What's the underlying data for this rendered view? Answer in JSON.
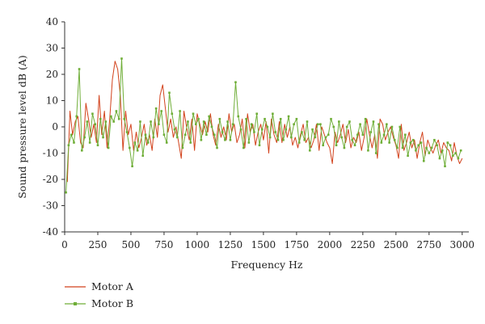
{
  "chart_data": {
    "type": "line",
    "title": "",
    "xlabel": "Frequency Hz",
    "ylabel": "Sound pressure level dB (A)",
    "xlim": [
      0,
      3050
    ],
    "ylim": [
      -40,
      40
    ],
    "xticks": [
      0,
      250,
      500,
      750,
      1000,
      1250,
      1500,
      1750,
      2000,
      2250,
      2500,
      2750,
      3000
    ],
    "yticks": [
      -40,
      -30,
      -20,
      -10,
      0,
      10,
      20,
      30,
      40
    ],
    "grid": false,
    "legend_position": "bottom-left",
    "series": [
      {
        "name": "Motor A",
        "color": "#d2421c",
        "marker": "none",
        "x": [
          20,
          40,
          60,
          80,
          100,
          120,
          140,
          160,
          180,
          200,
          220,
          240,
          260,
          280,
          300,
          320,
          340,
          360,
          380,
          400,
          420,
          440,
          460,
          480,
          500,
          520,
          540,
          560,
          580,
          600,
          620,
          640,
          660,
          680,
          700,
          720,
          740,
          760,
          780,
          800,
          820,
          840,
          860,
          880,
          900,
          920,
          940,
          960,
          980,
          1000,
          1020,
          1040,
          1060,
          1080,
          1100,
          1120,
          1140,
          1160,
          1180,
          1200,
          1220,
          1240,
          1260,
          1280,
          1300,
          1320,
          1340,
          1360,
          1380,
          1400,
          1420,
          1440,
          1460,
          1480,
          1500,
          1520,
          1540,
          1560,
          1580,
          1600,
          1620,
          1640,
          1660,
          1680,
          1700,
          1720,
          1740,
          1760,
          1780,
          1800,
          1820,
          1840,
          1860,
          1880,
          1900,
          1920,
          1940,
          1960,
          1980,
          2000,
          2020,
          2040,
          2060,
          2080,
          2100,
          2120,
          2140,
          2160,
          2180,
          2200,
          2220,
          2240,
          2260,
          2280,
          2300,
          2320,
          2340,
          2360,
          2380,
          2400,
          2420,
          2440,
          2460,
          2480,
          2500,
          2520,
          2540,
          2560,
          2580,
          2600,
          2620,
          2640,
          2660,
          2680,
          2700,
          2720,
          2740,
          2760,
          2780,
          2800,
          2820,
          2840,
          2860,
          2880,
          2900,
          2920,
          2940,
          2960,
          2980,
          3000
        ],
        "y": [
          -21,
          6,
          -3,
          2,
          4,
          -6,
          -8,
          9,
          3,
          -4,
          1,
          -6,
          12,
          -3,
          6,
          -8,
          3,
          18,
          25,
          22,
          12,
          -9,
          6,
          -3,
          1,
          -9,
          -2,
          -8,
          -4,
          1,
          -7,
          -3,
          -9,
          3,
          -4,
          12,
          16,
          7,
          -2,
          3,
          -4,
          0,
          -6,
          -12,
          6,
          0,
          -5,
          3,
          -9,
          5,
          1,
          -3,
          2,
          -2,
          5,
          -3,
          -7,
          1,
          -4,
          0,
          -5,
          5,
          -2,
          1,
          -6,
          -3,
          3,
          -8,
          5,
          -2,
          1,
          -7,
          -2,
          1,
          -5,
          2,
          -10,
          3,
          -3,
          -6,
          2,
          -6,
          1,
          -4,
          0,
          -7,
          -4,
          -8,
          -3,
          1,
          -6,
          -4,
          -8,
          -5,
          1,
          -9,
          0,
          -3,
          -6,
          -8,
          -14,
          -2,
          -6,
          -3,
          1,
          -6,
          -1,
          -8,
          -4,
          -6,
          -2,
          -9,
          -4,
          3,
          -3,
          -8,
          -3,
          -12,
          3,
          1,
          -5,
          -2,
          0,
          -4,
          -7,
          -12,
          1,
          -9,
          -6,
          -2,
          -8,
          -5,
          -12,
          -6,
          -2,
          -11,
          -5,
          -8,
          -10,
          -7,
          -5,
          -10,
          -6,
          -8,
          -9,
          -13,
          -6,
          -11,
          -14,
          -12
        ],
        "color_key": "Motor A"
      },
      {
        "name": "Motor B",
        "color": "#6fae38",
        "marker": "square",
        "x": [
          10,
          30,
          50,
          70,
          90,
          110,
          130,
          150,
          170,
          190,
          210,
          230,
          250,
          270,
          290,
          310,
          330,
          350,
          370,
          390,
          410,
          430,
          450,
          470,
          490,
          510,
          530,
          550,
          570,
          590,
          610,
          630,
          650,
          670,
          690,
          710,
          730,
          750,
          770,
          790,
          810,
          830,
          850,
          870,
          890,
          910,
          930,
          950,
          970,
          990,
          1010,
          1030,
          1050,
          1070,
          1090,
          1110,
          1130,
          1150,
          1170,
          1190,
          1210,
          1230,
          1250,
          1270,
          1290,
          1310,
          1330,
          1350,
          1370,
          1390,
          1410,
          1430,
          1450,
          1470,
          1490,
          1510,
          1530,
          1550,
          1570,
          1590,
          1610,
          1630,
          1650,
          1670,
          1690,
          1710,
          1730,
          1750,
          1770,
          1790,
          1810,
          1830,
          1850,
          1870,
          1890,
          1910,
          1930,
          1950,
          1970,
          1990,
          2010,
          2030,
          2050,
          2070,
          2090,
          2110,
          2130,
          2150,
          2170,
          2190,
          2210,
          2230,
          2250,
          2270,
          2290,
          2310,
          2330,
          2350,
          2370,
          2390,
          2410,
          2430,
          2450,
          2470,
          2490,
          2510,
          2530,
          2550,
          2570,
          2590,
          2610,
          2630,
          2650,
          2670,
          2690,
          2710,
          2730,
          2750,
          2770,
          2790,
          2810,
          2830,
          2850,
          2870,
          2890,
          2910,
          2930,
          2950,
          2970,
          2990
        ],
        "y": [
          -25,
          -7,
          -3,
          -6,
          4,
          22,
          -9,
          -4,
          2,
          -6,
          5,
          1,
          -7,
          3,
          -4,
          2,
          -8,
          4,
          2,
          6,
          3,
          26,
          3,
          -2,
          -8,
          -15,
          -6,
          -9,
          2,
          -11,
          -3,
          -6,
          2,
          -4,
          7,
          1,
          6,
          -3,
          -6,
          13,
          5,
          -1,
          -4,
          6,
          -8,
          -3,
          2,
          -6,
          5,
          1,
          3,
          -5,
          2,
          -3,
          4,
          0,
          -3,
          -8,
          3,
          -2,
          -5,
          2,
          -5,
          1,
          17,
          4,
          -1,
          -8,
          3,
          -6,
          1,
          -2,
          5,
          -7,
          -1,
          3,
          0,
          -4,
          5,
          -2,
          -5,
          3,
          -5,
          -1,
          4,
          -4,
          1,
          3,
          -6,
          -2,
          -5,
          2,
          -9,
          -1,
          -4,
          1,
          1,
          -7,
          -4,
          -3,
          3,
          0,
          -7,
          2,
          -4,
          -8,
          0,
          2,
          -5,
          -7,
          -3,
          1,
          -3,
          3,
          -9,
          -2,
          2,
          -10,
          1,
          -6,
          -3,
          1,
          -6,
          0,
          -5,
          -8,
          0,
          -8,
          -3,
          -11,
          -6,
          -5,
          -9,
          -7,
          -6,
          -13,
          -8,
          -10,
          -8,
          -5,
          -7,
          -12,
          -9,
          -15,
          -6,
          -7,
          -11,
          -10,
          -12,
          -9
        ],
        "color_key": "Motor B"
      }
    ]
  }
}
